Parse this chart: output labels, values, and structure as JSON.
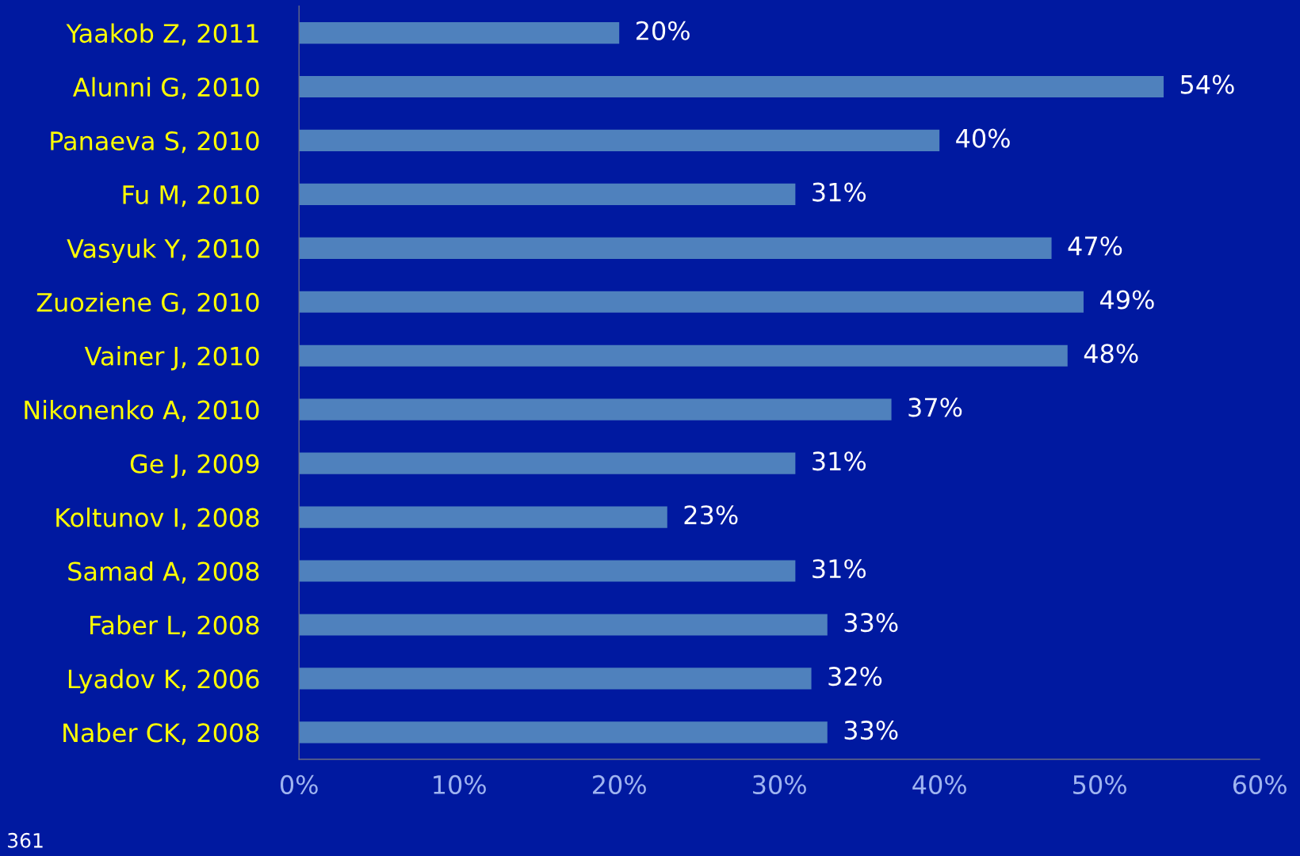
{
  "chart_data": {
    "type": "bar",
    "orientation": "horizontal",
    "categories": [
      "Yaakob Z, 2011",
      "Alunni G, 2010",
      "Panaeva S, 2010",
      "Fu M, 2010",
      "Vasyuk Y, 2010",
      "Zuoziene G, 2010",
      "Vainer J, 2010",
      "Nikonenko A, 2010",
      "Ge J, 2009",
      "Koltunov I, 2008",
      "Samad A, 2008",
      "Faber L, 2008",
      "Lyadov K, 2006",
      "Naber CK, 2008"
    ],
    "values": [
      20,
      54,
      40,
      31,
      47,
      49,
      48,
      37,
      31,
      23,
      31,
      33,
      32,
      33
    ],
    "value_labels": [
      "20%",
      "54%",
      "40%",
      "31%",
      "47%",
      "49%",
      "48%",
      "37%",
      "31%",
      "23%",
      "31%",
      "33%",
      "32%",
      "33%"
    ],
    "color": "#4f81bd",
    "xlim": [
      0,
      60
    ],
    "xticks": [
      {
        "value": 0,
        "label": "0%"
      },
      {
        "value": 10,
        "label": "10%"
      },
      {
        "value": 20,
        "label": "20%"
      },
      {
        "value": 30,
        "label": "30%"
      },
      {
        "value": 40,
        "label": "40%"
      },
      {
        "value": 50,
        "label": "50%"
      },
      {
        "value": 60,
        "label": "60%"
      }
    ],
    "grid": false,
    "annotations": [
      "361"
    ]
  }
}
